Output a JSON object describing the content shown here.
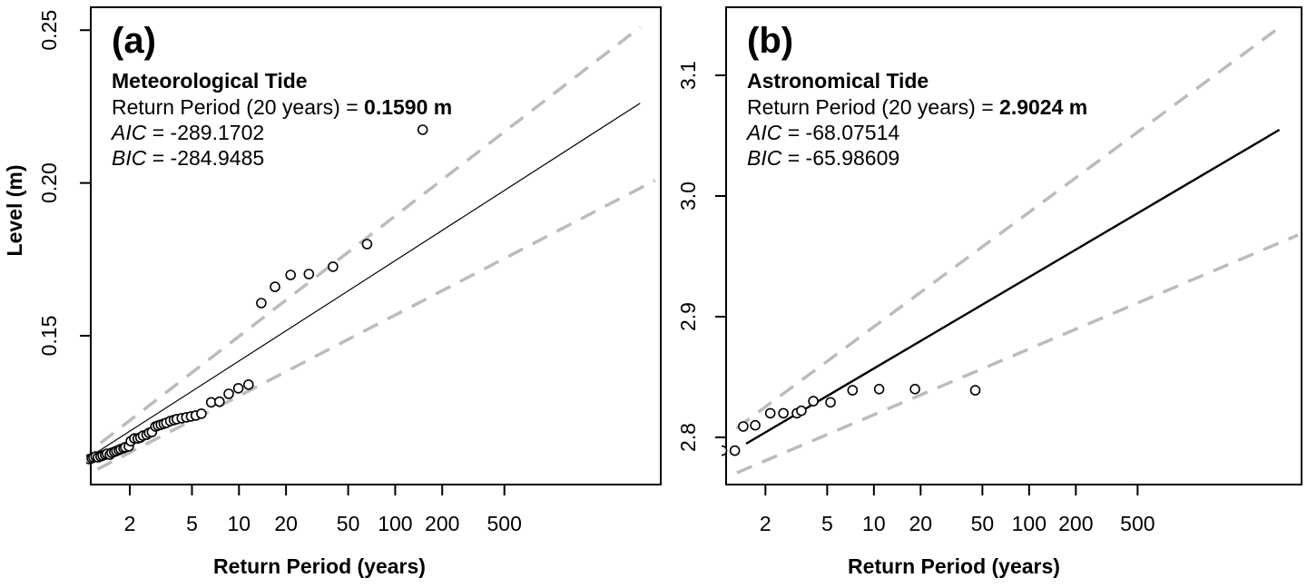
{
  "figure": {
    "background": "#ffffff",
    "frame_color": "#000000",
    "band_color": "#bcbcbc",
    "point_color": "#000000",
    "fit_color": "#000000"
  },
  "chart_data": [
    {
      "type": "scatter",
      "id": "a",
      "label": "(a)",
      "title": "Meteorological Tide",
      "return_prefix": "Return Period (20 years) = ",
      "return_value": "0.1590 m",
      "aic_label": "AIC",
      "aic_value": " = -289.1702",
      "bic_label": "BIC",
      "bic_value": " = -284.9485",
      "xlabel": "Return Period (years)",
      "ylabel": "Level (m)",
      "xscale": "log",
      "grid": false,
      "xlim": [
        1.125,
        5012
      ],
      "ylim": [
        0.1013,
        0.2575
      ],
      "xticks": [
        {
          "value": 2,
          "label": "2"
        },
        {
          "value": 5,
          "label": "5"
        },
        {
          "value": 10,
          "label": "10"
        },
        {
          "value": 20,
          "label": "20"
        },
        {
          "value": 50,
          "label": "50"
        },
        {
          "value": 100,
          "label": "100"
        },
        {
          "value": 200,
          "label": "200"
        },
        {
          "value": 500,
          "label": "500"
        }
      ],
      "yticks": [
        {
          "value": 0.15,
          "label": "0.15"
        },
        {
          "value": 0.2,
          "label": "0.20"
        },
        {
          "value": 0.25,
          "label": "0.25"
        }
      ],
      "points": {
        "t": [
          1.1,
          1.14,
          1.17,
          1.21,
          1.25,
          1.3,
          1.34,
          1.39,
          1.43,
          1.49,
          1.53,
          1.59,
          1.64,
          1.7,
          1.75,
          1.82,
          1.87,
          1.97,
          2.03,
          2.14,
          2.25,
          2.34,
          2.43,
          2.56,
          2.66,
          2.77,
          2.92,
          3.03,
          3.16,
          3.3,
          3.43,
          3.63,
          3.83,
          4.0,
          4.3,
          4.6,
          4.93,
          5.29,
          5.75,
          6.64,
          7.5,
          8.6,
          9.9,
          11.5,
          13.9,
          17.0,
          21.4,
          28.0,
          40.0,
          66.0,
          150
        ],
        "level": [
          0.1096,
          0.1099,
          0.1102,
          0.1105,
          0.1102,
          0.1105,
          0.1108,
          0.1111,
          0.1114,
          0.1111,
          0.1117,
          0.112,
          0.1123,
          0.1126,
          0.1129,
          0.1132,
          0.1135,
          0.1138,
          0.1155,
          0.1164,
          0.1164,
          0.1167,
          0.1173,
          0.1176,
          0.1182,
          0.1185,
          0.1203,
          0.1206,
          0.1209,
          0.1212,
          0.1215,
          0.1221,
          0.1224,
          0.1227,
          0.123,
          0.1233,
          0.1236,
          0.1239,
          0.1245,
          0.1282,
          0.1284,
          0.131,
          0.1328,
          0.134,
          0.1607,
          0.166,
          0.1699,
          0.1702,
          0.1726,
          0.18,
          0.2174
        ]
      },
      "fit_line": {
        "t": [
          1.12,
          3700
        ],
        "level": [
          0.1105,
          0.2261
        ]
      },
      "band_upper": {
        "t": [
          1.3,
          3700
        ],
        "level": [
          0.1149,
          0.251
        ]
      },
      "band_lower": {
        "t": [
          1.24,
          4600
        ],
        "level": [
          0.1063,
          0.2008
        ]
      }
    },
    {
      "type": "scatter",
      "id": "b",
      "label": "(b)",
      "title": "Astronomical Tide",
      "return_prefix": "Return Period (20 years) = ",
      "return_value": "2.9024 m",
      "aic_label": "AIC",
      "aic_value": " = -68.07514",
      "bic_label": "BIC",
      "bic_value": " = -65.98609",
      "xlabel": "Return Period (years)",
      "ylabel": "",
      "xscale": "log",
      "grid": false,
      "xlim": [
        1.116,
        5693
      ],
      "ylim": [
        2.7609,
        3.1564
      ],
      "xticks": [
        {
          "value": 2,
          "label": "2"
        },
        {
          "value": 5,
          "label": "5"
        },
        {
          "value": 10,
          "label": "10"
        },
        {
          "value": 20,
          "label": "20"
        },
        {
          "value": 50,
          "label": "50"
        },
        {
          "value": 100,
          "label": "100"
        },
        {
          "value": 200,
          "label": "200"
        },
        {
          "value": 500,
          "label": "500"
        }
      ],
      "yticks": [
        {
          "value": 2.8,
          "label": "2.8"
        },
        {
          "value": 2.9,
          "label": "2.9"
        },
        {
          "value": 3.0,
          "label": "3.0"
        },
        {
          "value": 3.1,
          "label": "3.1"
        }
      ],
      "points": {
        "t": [
          1.05,
          1.27,
          1.44,
          1.72,
          2.15,
          2.61,
          3.19,
          3.41,
          4.07,
          5.25,
          7.28,
          10.8,
          18.4,
          45.0
        ],
        "level": [
          2.789,
          2.789,
          2.809,
          2.81,
          2.82,
          2.82,
          2.82,
          2.822,
          2.83,
          2.829,
          2.839,
          2.84,
          2.84,
          2.839
        ]
      },
      "fit_line": {
        "t": [
          1.5,
          4100
        ],
        "level": [
          2.7947,
          3.0549
        ]
      },
      "band_upper": {
        "t": [
          1.3,
          3900
        ],
        "level": [
          2.8075,
          3.1376
        ]
      },
      "band_lower": {
        "t": [
          1.31,
          5400
        ],
        "level": [
          2.7707,
          2.9677
        ]
      }
    }
  ]
}
